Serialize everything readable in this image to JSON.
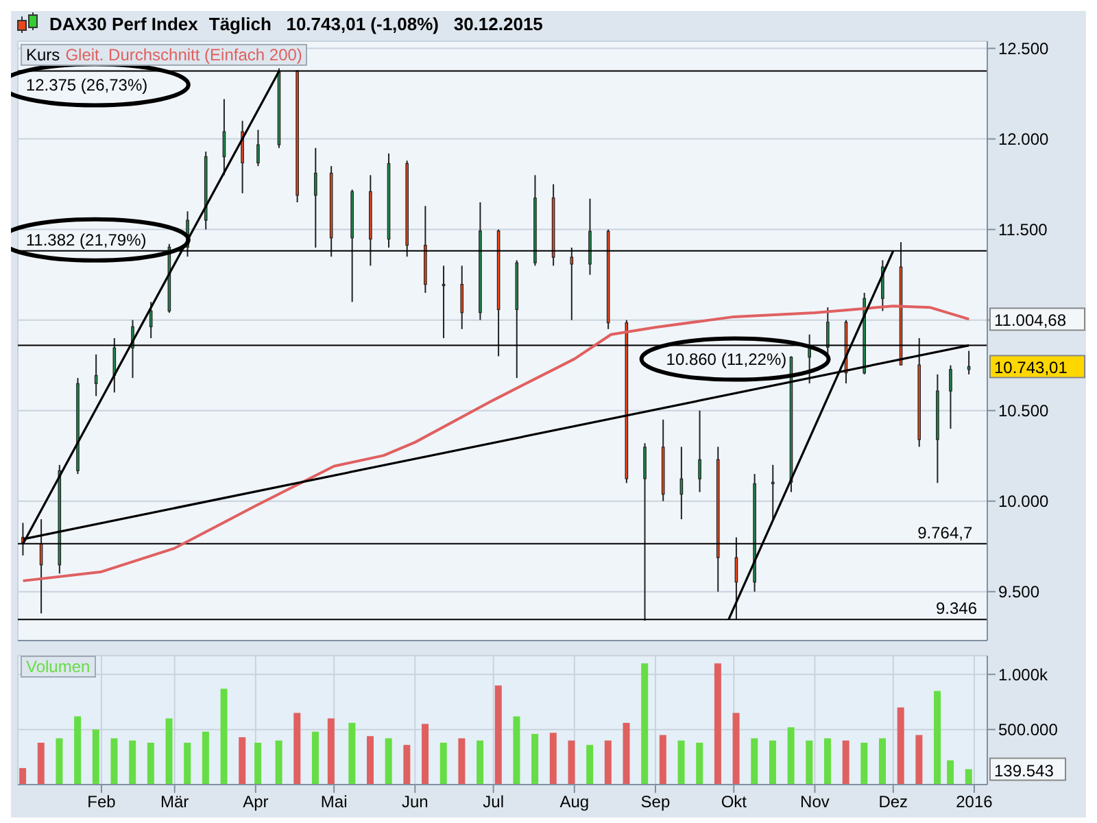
{
  "chart_data": [
    {
      "type": "candlestick",
      "title": "DAX30 Perf Index",
      "subtitle": "Täglich   10.743,01 (-1,08%)   30.12.2015",
      "series": [
        {
          "type": "candlestick",
          "name": "Kurs",
          "x": [
            "2015-01-02",
            "2015-01-09",
            "2015-01-16",
            "2015-01-23",
            "2015-01-30",
            "2015-02-06",
            "2015-02-13",
            "2015-02-20",
            "2015-02-27",
            "2015-03-06",
            "2015-03-13",
            "2015-03-20",
            "2015-03-27",
            "2015-04-02",
            "2015-04-10",
            "2015-04-17",
            "2015-04-24",
            "2015-04-30",
            "2015-05-08",
            "2015-05-15",
            "2015-05-22",
            "2015-05-29",
            "2015-06-05",
            "2015-06-12",
            "2015-06-19",
            "2015-06-26",
            "2015-07-03",
            "2015-07-10",
            "2015-07-17",
            "2015-07-24",
            "2015-07-31",
            "2015-08-07",
            "2015-08-14",
            "2015-08-21",
            "2015-08-28",
            "2015-09-04",
            "2015-09-11",
            "2015-09-18",
            "2015-09-25",
            "2015-10-02",
            "2015-10-09",
            "2015-10-16",
            "2015-10-23",
            "2015-10-30",
            "2015-11-06",
            "2015-11-13",
            "2015-11-20",
            "2015-11-27",
            "2015-12-04",
            "2015-12-11",
            "2015-12-18",
            "2015-12-23",
            "2015-12-30"
          ],
          "ohlc": [
            [
              9800,
              9880,
              9700,
              9765
            ],
            [
              9765,
              9900,
              9380,
              9648
            ],
            [
              9648,
              10200,
              9600,
              10168
            ],
            [
              10168,
              10680,
              10150,
              10649
            ],
            [
              10649,
              10810,
              10580,
              10694
            ],
            [
              10694,
              10900,
              10600,
              10846
            ],
            [
              10846,
              11000,
              10680,
              10963
            ],
            [
              10963,
              11100,
              10900,
              11050
            ],
            [
              11050,
              11420,
              11040,
              11402
            ],
            [
              11402,
              11600,
              11350,
              11551
            ],
            [
              11551,
              11930,
              11500,
              11902
            ],
            [
              11902,
              12220,
              11800,
              12040
            ],
            [
              12040,
              12100,
              11700,
              11868
            ],
            [
              11868,
              12050,
              11850,
              11968
            ],
            [
              11968,
              12390,
              11950,
              12375
            ],
            [
              12375,
              12380,
              11650,
              11689
            ],
            [
              11689,
              11950,
              11400,
              11811
            ],
            [
              11811,
              11850,
              11350,
              11454
            ],
            [
              11454,
              11720,
              11100,
              11709
            ],
            [
              11709,
              11800,
              11300,
              11447
            ],
            [
              11447,
              11920,
              11400,
              11864
            ],
            [
              11864,
              11880,
              11350,
              11413
            ],
            [
              11413,
              11630,
              11150,
              11197
            ],
            [
              11197,
              11300,
              10900,
              11197
            ],
            [
              11197,
              11300,
              10950,
              11041
            ],
            [
              11041,
              11650,
              11000,
              11492
            ],
            [
              11492,
              11500,
              10800,
              11058
            ],
            [
              11058,
              11330,
              10680,
              11316
            ],
            [
              11316,
              11800,
              11300,
              11674
            ],
            [
              11674,
              11750,
              11300,
              11347
            ],
            [
              11347,
              11400,
              11000,
              11309
            ],
            [
              11309,
              11670,
              11250,
              11490
            ],
            [
              11490,
              11500,
              10950,
              10985
            ],
            [
              10985,
              11000,
              10100,
              10124
            ],
            [
              10124,
              10320,
              9340,
              10298
            ],
            [
              10298,
              10450,
              10000,
              10038
            ],
            [
              10038,
              10300,
              9900,
              10123
            ],
            [
              10123,
              10500,
              10050,
              10229
            ],
            [
              10229,
              10300,
              9500,
              9688
            ],
            [
              9688,
              9800,
              9346,
              9553
            ],
            [
              9553,
              10150,
              9500,
              10096
            ],
            [
              10096,
              10200,
              9900,
              10104
            ],
            [
              10104,
              10800,
              10050,
              10795
            ],
            [
              10795,
              10920,
              10650,
              10850
            ],
            [
              10850,
              11070,
              10800,
              10988
            ],
            [
              10988,
              11000,
              10650,
              10708
            ],
            [
              10708,
              11150,
              10700,
              11119
            ],
            [
              11119,
              11330,
              11050,
              11293
            ],
            [
              11293,
              11430,
              10750,
              10752
            ],
            [
              10752,
              10900,
              10300,
              10340
            ],
            [
              10340,
              10700,
              10100,
              10608
            ],
            [
              10608,
              10750,
              10400,
              10727
            ],
            [
              10727,
              10830,
              10700,
              10743
            ]
          ],
          "colors": [
            "#e8471c",
            "#e8471c",
            "#1e8a4c",
            "#1e8a4c",
            "#1e8a4c",
            "#1e8a4c",
            "#1e8a4c",
            "#1e8a4c",
            "#1e8a4c",
            "#1e8a4c",
            "#1e8a4c",
            "#1e8a4c",
            "#e8471c",
            "#1e8a4c",
            "#1e8a4c",
            "#e8471c",
            "#1e8a4c",
            "#e8471c",
            "#1e8a4c",
            "#e8471c",
            "#1e8a4c",
            "#e8471c",
            "#e8471c",
            "#1e8a4c",
            "#e8471c",
            "#1e8a4c",
            "#e8471c",
            "#1e8a4c",
            "#1e8a4c",
            "#e8471c",
            "#e8471c",
            "#1e8a4c",
            "#e8471c",
            "#e8471c",
            "#1e8a4c",
            "#e8471c",
            "#1e8a4c",
            "#1e8a4c",
            "#e8471c",
            "#e8471c",
            "#1e8a4c",
            "#1e8a4c",
            "#1e8a4c",
            "#1e8a4c",
            "#1e8a4c",
            "#e8471c",
            "#1e8a4c",
            "#1e8a4c",
            "#e8471c",
            "#e8471c",
            "#1e8a4c",
            "#1e8a4c",
            "#1e8a4c"
          ]
        },
        {
          "type": "line",
          "name": "Gleit. Durchschnitt (Einfach 200)",
          "color": "#e06060",
          "x": [
            "2015-01-02",
            "2015-02-01",
            "2015-03-01",
            "2015-04-01",
            "2015-05-01",
            "2015-05-20",
            "2015-06-01",
            "2015-07-01",
            "2015-08-01",
            "2015-08-15",
            "2015-09-01",
            "2015-10-01",
            "2015-11-01",
            "2015-12-01",
            "2015-12-15",
            "2015-12-30"
          ],
          "values": [
            9560,
            9610,
            9740,
            9974,
            10193,
            10252,
            10325,
            10558,
            10785,
            10920,
            10960,
            11018,
            11040,
            11077,
            11070,
            11005
          ]
        },
        {
          "type": "line",
          "color": "#000000",
          "x": [
            "2015-01-02",
            "2015-04-10"
          ],
          "values": [
            9765,
            12375
          ]
        },
        {
          "type": "line",
          "color": "#000000",
          "x": [
            "2015-01-02",
            "2015-12-30"
          ],
          "values": [
            9790,
            10860
          ]
        },
        {
          "type": "line",
          "color": "#000000",
          "x": [
            "2015-09-29",
            "2015-12-01"
          ],
          "values": [
            9346,
            11382
          ]
        }
      ],
      "xlim": [
        "2014-12-31",
        "2016-01-06"
      ],
      "xticks": [
        "2015-02-01",
        "2015-03-01",
        "2015-04-01",
        "2015-05-01",
        "2015-06-01",
        "2015-07-01",
        "2015-08-01",
        "2015-09-01",
        "2015-10-01",
        "2015-11-01",
        "2015-12-01",
        "2016-01-01"
      ],
      "ylim": [
        9230,
        12540
      ],
      "yticks": [
        {
          "value": 9500,
          "label": "9.500"
        },
        {
          "value": 10000,
          "label": "10.000"
        },
        {
          "value": 10500,
          "label": "10.500"
        },
        {
          "value": 11000,
          "label": null
        },
        {
          "value": 11500,
          "label": "11.500"
        },
        {
          "value": 12000,
          "label": "12.000"
        },
        {
          "value": 12500,
          "label": "12.500"
        }
      ],
      "tick_labels": "y",
      "grid": true,
      "legend": "top left",
      "ref_lines": [
        {
          "axis": "y",
          "value": 12375,
          "label": "12.375 (26,73%)",
          "color": "#000000"
        },
        {
          "axis": "y",
          "value": 10860,
          "label": "10.860 (11,22%)",
          "color": "#000000"
        },
        {
          "axis": "y",
          "value": 9764.7,
          "label": "9.764,7",
          "color": "#000000"
        },
        {
          "axis": "y",
          "value": 11382,
          "label": "11.382 (21,79%)",
          "color": "#000000"
        },
        {
          "axis": "y",
          "value": 9346,
          "label": "9.346",
          "color": "#000000"
        }
      ],
      "annotations": [
        {
          "text": "11.004,68",
          "x": "2015-12-30",
          "y": 11004.68
        },
        {
          "text": "10.743,01",
          "x": "2015-12-30",
          "y": 10743
        }
      ]
    },
    {
      "type": "bar",
      "x": [
        "2015-01-02",
        "2015-01-09",
        "2015-01-16",
        "2015-01-23",
        "2015-01-30",
        "2015-02-06",
        "2015-02-13",
        "2015-02-20",
        "2015-02-27",
        "2015-03-06",
        "2015-03-13",
        "2015-03-20",
        "2015-03-27",
        "2015-04-02",
        "2015-04-10",
        "2015-04-17",
        "2015-04-24",
        "2015-04-30",
        "2015-05-08",
        "2015-05-15",
        "2015-05-22",
        "2015-05-29",
        "2015-06-05",
        "2015-06-12",
        "2015-06-19",
        "2015-06-26",
        "2015-07-03",
        "2015-07-10",
        "2015-07-17",
        "2015-07-24",
        "2015-07-31",
        "2015-08-07",
        "2015-08-14",
        "2015-08-21",
        "2015-08-28",
        "2015-09-04",
        "2015-09-11",
        "2015-09-18",
        "2015-09-25",
        "2015-10-02",
        "2015-10-09",
        "2015-10-16",
        "2015-10-23",
        "2015-10-30",
        "2015-11-06",
        "2015-11-13",
        "2015-11-20",
        "2015-11-27",
        "2015-12-04",
        "2015-12-11",
        "2015-12-18",
        "2015-12-23",
        "2015-12-30"
      ],
      "series": [
        {
          "name": "Volumen",
          "values": [
            150000,
            380000,
            420000,
            620000,
            500000,
            420000,
            400000,
            380000,
            600000,
            380000,
            480000,
            870000,
            430000,
            380000,
            400000,
            650000,
            480000,
            600000,
            560000,
            440000,
            420000,
            360000,
            550000,
            380000,
            420000,
            400000,
            900000,
            620000,
            460000,
            470000,
            400000,
            360000,
            400000,
            560000,
            1100000,
            450000,
            400000,
            380000,
            1100000,
            650000,
            420000,
            400000,
            520000,
            400000,
            420000,
            400000,
            380000,
            420000,
            700000,
            450000,
            850000,
            220000,
            140000
          ],
          "colors": [
            "#e06060",
            "#e06060",
            "#66dd44",
            "#66dd44",
            "#66dd44",
            "#66dd44",
            "#66dd44",
            "#66dd44",
            "#66dd44",
            "#66dd44",
            "#66dd44",
            "#66dd44",
            "#e06060",
            "#66dd44",
            "#66dd44",
            "#e06060",
            "#66dd44",
            "#e06060",
            "#66dd44",
            "#e06060",
            "#66dd44",
            "#e06060",
            "#e06060",
            "#66dd44",
            "#e06060",
            "#66dd44",
            "#e06060",
            "#66dd44",
            "#66dd44",
            "#e06060",
            "#e06060",
            "#66dd44",
            "#e06060",
            "#e06060",
            "#66dd44",
            "#e06060",
            "#66dd44",
            "#66dd44",
            "#e06060",
            "#e06060",
            "#66dd44",
            "#66dd44",
            "#66dd44",
            "#66dd44",
            "#66dd44",
            "#e06060",
            "#66dd44",
            "#66dd44",
            "#e06060",
            "#e06060",
            "#66dd44",
            "#66dd44",
            "#66dd44"
          ]
        }
      ],
      "xlim": [
        "2014-12-31",
        "2016-01-06"
      ],
      "xticks": [
        {
          "value": "2015-02-01",
          "label": "Feb"
        },
        {
          "value": "2015-03-01",
          "label": "Mär"
        },
        {
          "value": "2015-04-01",
          "label": "Apr"
        },
        {
          "value": "2015-05-01",
          "label": "Mai"
        },
        {
          "value": "2015-06-01",
          "label": "Jun"
        },
        {
          "value": "2015-07-01",
          "label": "Jul"
        },
        {
          "value": "2015-08-01",
          "label": "Aug"
        },
        {
          "value": "2015-09-01",
          "label": "Sep"
        },
        {
          "value": "2015-10-01",
          "label": "Okt"
        },
        {
          "value": "2015-11-01",
          "label": "Nov"
        },
        {
          "value": "2015-12-01",
          "label": "Dez"
        },
        {
          "value": "2016-01-01",
          "label": "2016"
        }
      ],
      "ylim": [
        0,
        1170000
      ],
      "yticks": [
        {
          "value": 500000,
          "label": "500.000"
        },
        {
          "value": 1000000,
          "label": "1.000k"
        }
      ],
      "grid": true,
      "legend": "top left",
      "annotations": [
        {
          "text": "139.543",
          "x": "2015-12-30",
          "y": 139543
        }
      ]
    }
  ]
}
